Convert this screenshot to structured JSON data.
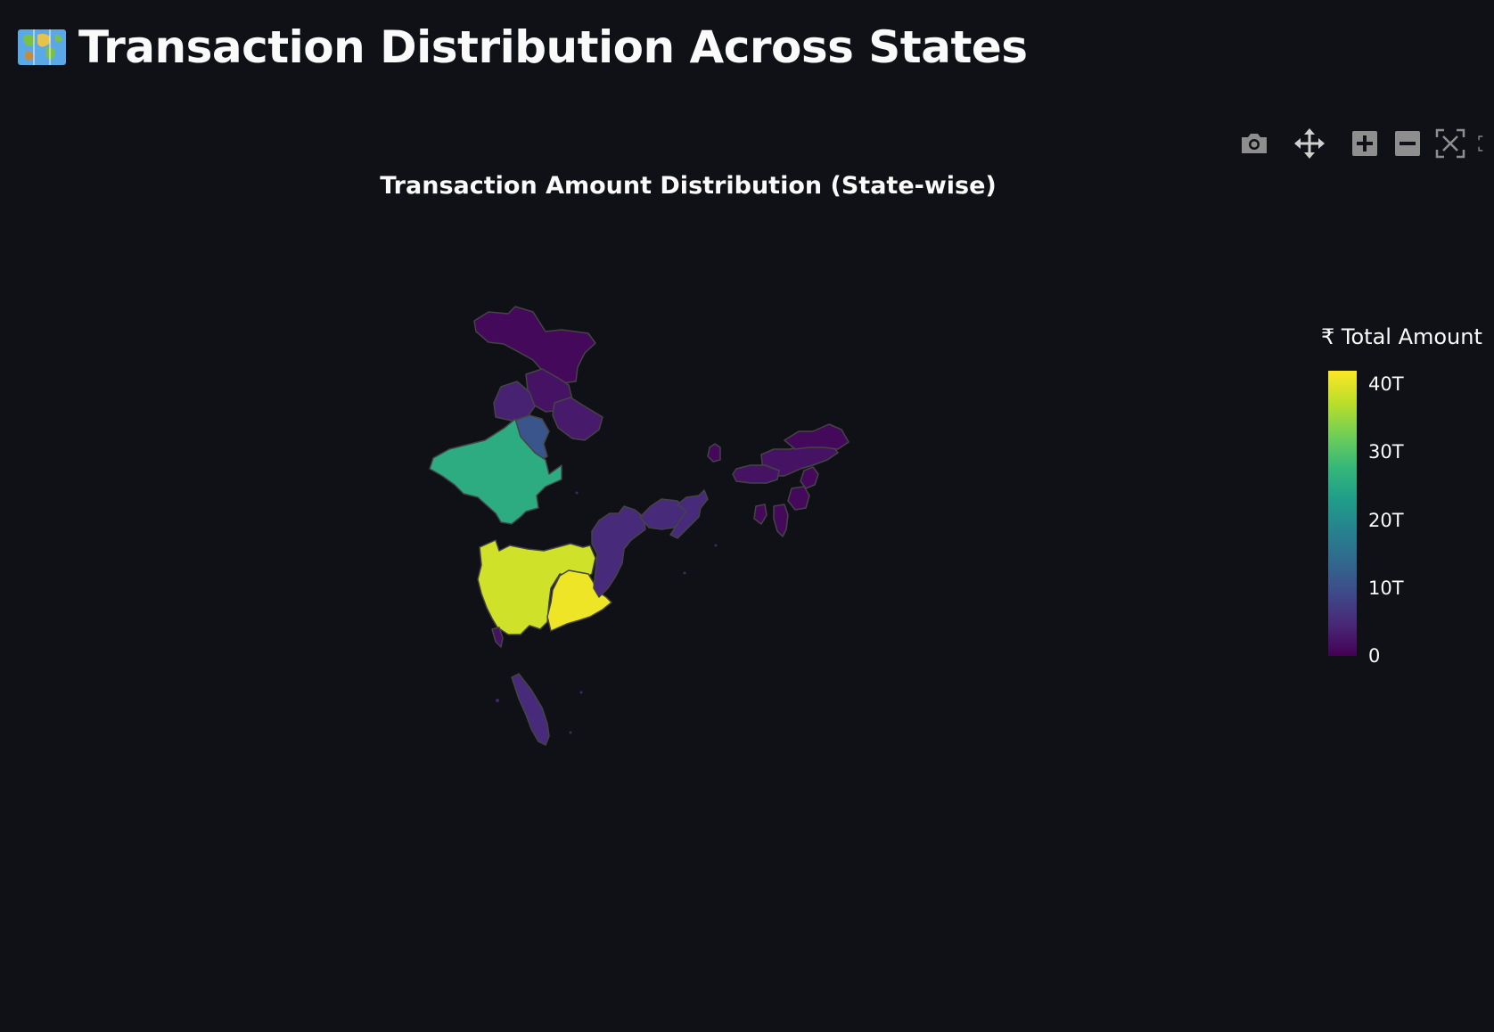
{
  "page": {
    "heading_icon": "world-map-icon",
    "heading": "Transaction Distribution Across States"
  },
  "modebar": {
    "buttons": [
      "camera-icon",
      "pan-icon",
      "zoom-in-icon",
      "zoom-out-icon",
      "autoscale-icon",
      "reset-icon"
    ]
  },
  "chart_data": {
    "type": "choropleth",
    "title": "Transaction Amount Distribution (State-wise)",
    "colorbar": {
      "title": "₹ Total Amount",
      "colorscale": "viridis",
      "range": [
        0,
        42
      ],
      "tick_labels": [
        "0",
        "10T",
        "20T",
        "30T",
        "40T"
      ],
      "tick_values": [
        0,
        10,
        20,
        30,
        40
      ]
    },
    "regions": [
      {
        "id": "jammu-kashmir",
        "value": 1
      },
      {
        "id": "himachal-pradesh",
        "value": 2
      },
      {
        "id": "punjab",
        "value": 4
      },
      {
        "id": "haryana",
        "value": 11
      },
      {
        "id": "uttarakhand",
        "value": 3
      },
      {
        "id": "rajasthan",
        "value": 26
      },
      {
        "id": "maharashtra",
        "value": 39
      },
      {
        "id": "telangana",
        "value": 41
      },
      {
        "id": "goa",
        "value": 2
      },
      {
        "id": "odisha",
        "value": 5
      },
      {
        "id": "jharkhand",
        "value": 5
      },
      {
        "id": "west-bengal",
        "value": 5
      },
      {
        "id": "sikkim",
        "value": 1
      },
      {
        "id": "assam",
        "value": 2
      },
      {
        "id": "meghalaya",
        "value": 2
      },
      {
        "id": "arunachal-pradesh",
        "value": 1
      },
      {
        "id": "nagaland",
        "value": 1
      },
      {
        "id": "manipur",
        "value": 1
      },
      {
        "id": "mizoram",
        "value": 1
      },
      {
        "id": "tripura",
        "value": 1
      },
      {
        "id": "kerala",
        "value": 5
      }
    ]
  }
}
